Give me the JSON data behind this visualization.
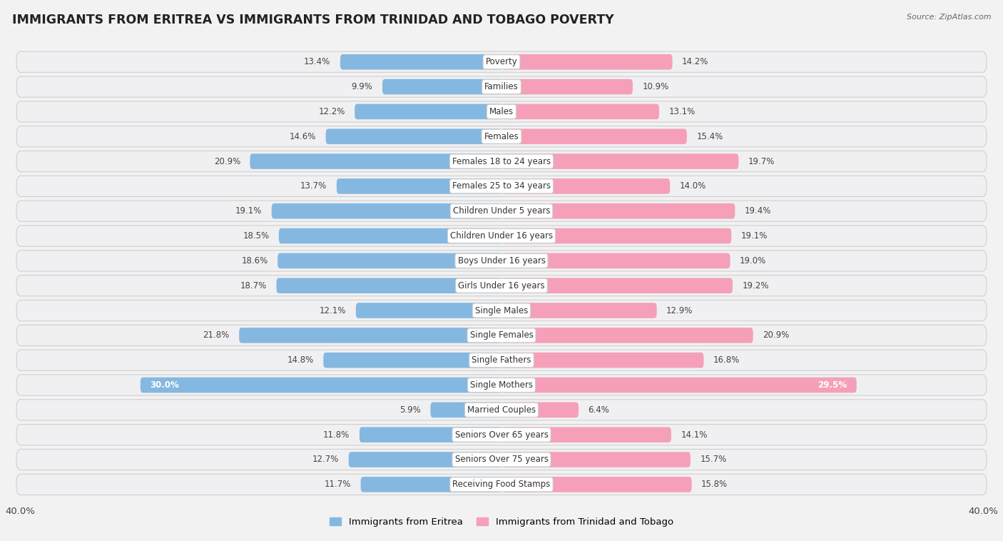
{
  "title": "IMMIGRANTS FROM ERITREA VS IMMIGRANTS FROM TRINIDAD AND TOBAGO POVERTY",
  "source": "Source: ZipAtlas.com",
  "categories": [
    "Poverty",
    "Families",
    "Males",
    "Females",
    "Females 18 to 24 years",
    "Females 25 to 34 years",
    "Children Under 5 years",
    "Children Under 16 years",
    "Boys Under 16 years",
    "Girls Under 16 years",
    "Single Males",
    "Single Females",
    "Single Fathers",
    "Single Mothers",
    "Married Couples",
    "Seniors Over 65 years",
    "Seniors Over 75 years",
    "Receiving Food Stamps"
  ],
  "eritrea_values": [
    13.4,
    9.9,
    12.2,
    14.6,
    20.9,
    13.7,
    19.1,
    18.5,
    18.6,
    18.7,
    12.1,
    21.8,
    14.8,
    30.0,
    5.9,
    11.8,
    12.7,
    11.7
  ],
  "trinidad_values": [
    14.2,
    10.9,
    13.1,
    15.4,
    19.7,
    14.0,
    19.4,
    19.1,
    19.0,
    19.2,
    12.9,
    20.9,
    16.8,
    29.5,
    6.4,
    14.1,
    15.7,
    15.8
  ],
  "eritrea_color": "#85b8e0",
  "trinidad_color": "#f5a0b8",
  "eritrea_label": "Immigrants from Eritrea",
  "trinidad_label": "Immigrants from Trinidad and Tobago",
  "xlim": 40.0,
  "row_bg_color": "#e8e8e8",
  "bar_bg_color": "#f7f7f7",
  "bar_inner_color": "#ffffff",
  "label_fontsize": 8.5,
  "value_fontsize": 8.5,
  "title_fontsize": 12.5
}
